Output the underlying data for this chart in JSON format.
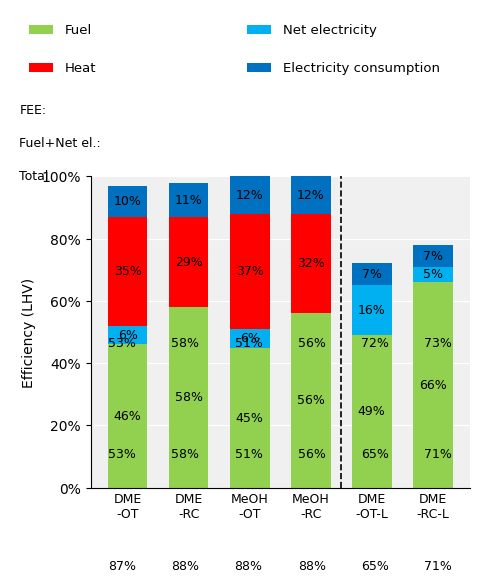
{
  "categories": [
    "DME\n-OT",
    "DME\n-RC",
    "MeOH\n-OT",
    "MeOH\n-RC",
    "DME\n-OT-L",
    "DME\n-RC-L"
  ],
  "fuel": [
    46,
    58,
    45,
    56,
    49,
    66
  ],
  "net_elec": [
    6,
    0,
    6,
    0,
    16,
    5
  ],
  "heat": [
    35,
    29,
    37,
    32,
    0,
    0
  ],
  "elec_cons": [
    10,
    11,
    12,
    12,
    7,
    7
  ],
  "fuel_labels": [
    "46%",
    "58%",
    "45%",
    "56%",
    "49%",
    "66%"
  ],
  "net_elec_labels": [
    "6%",
    "",
    "6%",
    "",
    "16%",
    "5%"
  ],
  "heat_labels": [
    "35%",
    "29%",
    "37%",
    "32%",
    "",
    ""
  ],
  "elec_cons_labels": [
    "10%",
    "11%",
    "12%",
    "12%",
    "7%",
    "7%"
  ],
  "color_fuel": "#92D050",
  "color_net_elec": "#00B0F0",
  "color_heat": "#FF0000",
  "color_elec_cons": "#0070C0",
  "fee_row": [
    "53%",
    "58%",
    "51%",
    "56%",
    "72%",
    "73%"
  ],
  "fuel_net_row": [
    "53%",
    "58%",
    "51%",
    "56%",
    "65%",
    "71%"
  ],
  "total_row": [
    "87%",
    "88%",
    "88%",
    "88%",
    "65%",
    "71%"
  ],
  "ylabel": "Efficiency (LHV)",
  "bg_color": "#F0F0F0",
  "table_row_labels": [
    "FEE:",
    "Fuel+Net el.:",
    "Total"
  ],
  "legend_col1": [
    "Fuel",
    "Heat"
  ],
  "legend_col2": [
    "Net electricity",
    "Electricity consumption"
  ],
  "legend_colors_col1": [
    "#92D050",
    "#FF0000"
  ],
  "legend_colors_col2": [
    "#00B0F0",
    "#0070C0"
  ]
}
